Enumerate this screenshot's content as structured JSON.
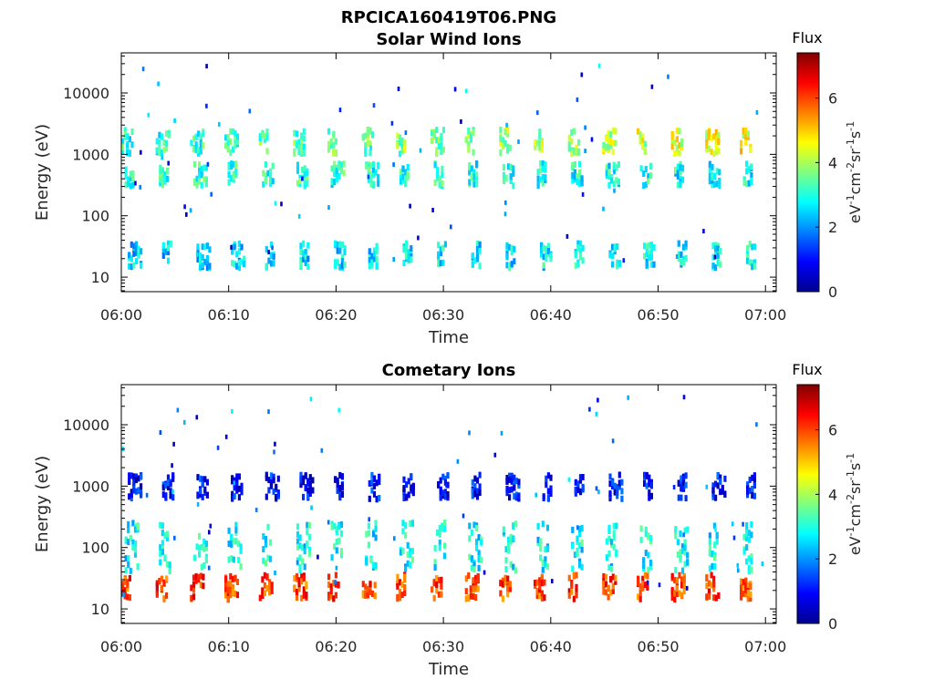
{
  "figure": {
    "title": "RPCICA160419T06.PNG"
  },
  "chart_data": [
    {
      "type": "heatmap",
      "title": "Solar Wind Ions",
      "xlabel": "Time",
      "ylabel": "Energy (eV)",
      "x_ticks": [
        "06:00",
        "06:10",
        "06:20",
        "06:30",
        "06:40",
        "06:50",
        "07:00"
      ],
      "x_range_minutes": [
        0,
        61
      ],
      "y_ticks": [
        "10",
        "100",
        "1000",
        "10000"
      ],
      "y_scale": "log",
      "y_range": [
        5.8,
        45000
      ],
      "colorbar": {
        "label": "Flux",
        "unit": "eV-1cm-2sr-1s-1",
        "ticks": [
          "0",
          "2",
          "4",
          "6"
        ],
        "range": [
          0,
          7.4
        ],
        "colormap": "jet"
      },
      "scan_period_min": 3.2,
      "bands": [
        {
          "band": "high",
          "emin": 1000,
          "emax": 2500,
          "flux_start": 3.0,
          "flux_end": 4.5
        },
        {
          "band": "mid",
          "emin": 300,
          "emax": 700,
          "flux_start": 3.2,
          "flux_end": 2.8
        },
        {
          "band": "low",
          "emin": 14,
          "emax": 35,
          "flux_start": 2.5,
          "flux_end": 2.8
        }
      ]
    },
    {
      "type": "heatmap",
      "title": "Cometary Ions",
      "xlabel": "Time",
      "ylabel": "Energy (eV)",
      "x_ticks": [
        "06:00",
        "06:10",
        "06:20",
        "06:30",
        "06:40",
        "06:50",
        "07:00"
      ],
      "x_range_minutes": [
        0,
        61
      ],
      "y_ticks": [
        "10",
        "100",
        "1000",
        "10000"
      ],
      "y_scale": "log",
      "y_range": [
        5.8,
        45000
      ],
      "colorbar": {
        "label": "Flux",
        "unit": "eV-1cm-2sr-1s-1",
        "ticks": [
          "0",
          "2",
          "4",
          "6"
        ],
        "range": [
          0,
          7.4
        ],
        "colormap": "jet"
      },
      "scan_period_min": 3.2,
      "bands": [
        {
          "band": "core",
          "emin": 14,
          "emax": 35,
          "flux_start": 6.0,
          "flux_end": 6.0
        },
        {
          "band": "halo",
          "emin": 40,
          "emax": 250,
          "flux_start": 2.8,
          "flux_end": 2.8
        },
        {
          "band": "sparse-high",
          "emin": 600,
          "emax": 1500,
          "flux_start": 1.0,
          "flux_end": 1.0
        }
      ]
    }
  ]
}
